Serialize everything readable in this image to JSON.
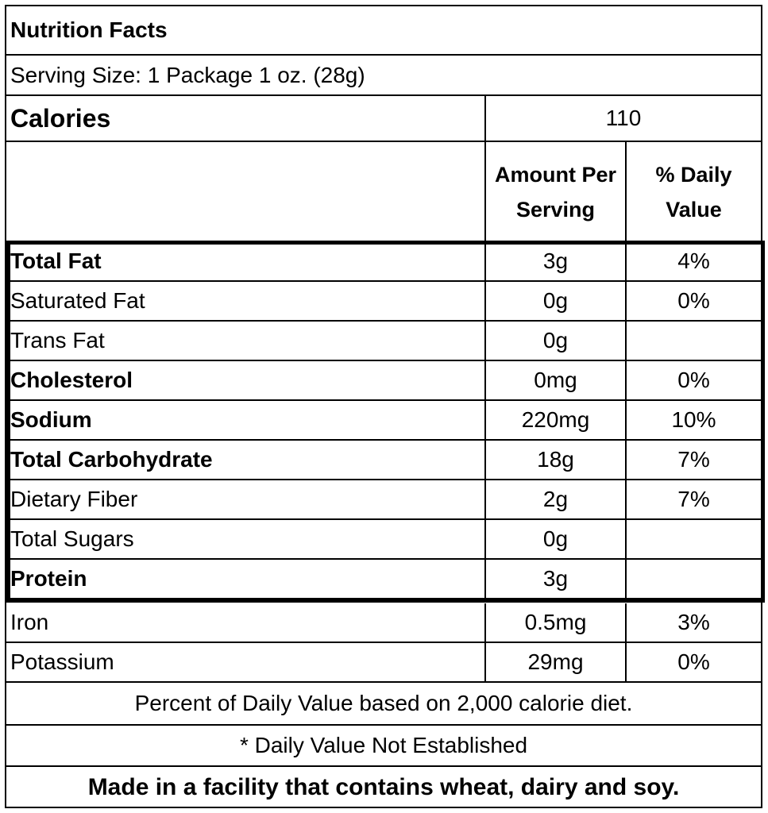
{
  "title": "Nutrition Facts",
  "serving_size": "Serving Size: 1 Package 1 oz. (28g)",
  "calories": {
    "label": "Calories",
    "value": "110"
  },
  "header": {
    "amount": "Amount Per Serving",
    "daily_value": "% Daily Value"
  },
  "nutrients": [
    {
      "name": "Total Fat",
      "amount": "3g",
      "dv": "4%"
    },
    {
      "name": "Saturated Fat",
      "amount": "0g",
      "dv": "0%"
    },
    {
      "name": "Trans Fat",
      "amount": "0g",
      "dv": ""
    },
    {
      "name": "Cholesterol",
      "amount": "0mg",
      "dv": "0%"
    },
    {
      "name": "Sodium",
      "amount": "220mg",
      "dv": "10%"
    },
    {
      "name": "Total Carbohydrate",
      "amount": "18g",
      "dv": "7%"
    },
    {
      "name": "Dietary Fiber",
      "amount": "2g",
      "dv": "7%"
    },
    {
      "name": "Total Sugars",
      "amount": "0g",
      "dv": ""
    },
    {
      "name": "Protein",
      "amount": "3g",
      "dv": ""
    }
  ],
  "minerals": [
    {
      "name": "Iron",
      "amount": "0.5mg",
      "dv": "3%"
    },
    {
      "name": "Potassium",
      "amount": "29mg",
      "dv": "0%"
    }
  ],
  "footnote_dv": "Percent of Daily Value based on 2,000 calorie diet.",
  "footnote_na": "* Daily Value Not Established",
  "allergen": "Made in a facility that contains wheat, dairy and soy."
}
